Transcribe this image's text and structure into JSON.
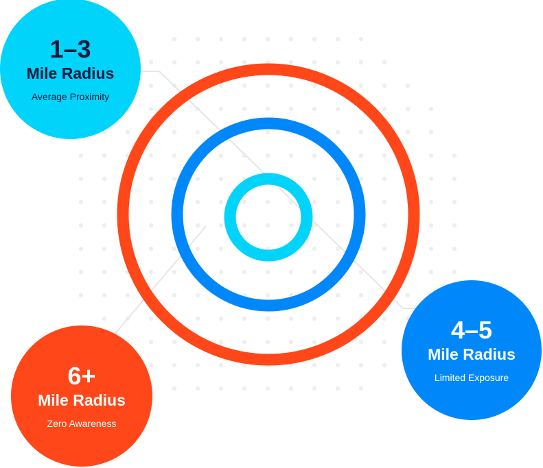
{
  "colors": {
    "cyan": "#00d4fb",
    "blue": "#0088fb",
    "red": "#ff4719",
    "navy": "#0f1a3c",
    "dots": "#eeeeee",
    "lines": "#e6e6e6"
  },
  "bubbles": [
    {
      "range": "1–3",
      "unit": "Mile Radius",
      "caption": "Average Proximity"
    },
    {
      "range": "4–5",
      "unit": "Mile Radius",
      "caption": "Limited Exposure"
    },
    {
      "range": "6+",
      "unit": "Mile Radius",
      "caption": "Zero Awareness"
    }
  ]
}
